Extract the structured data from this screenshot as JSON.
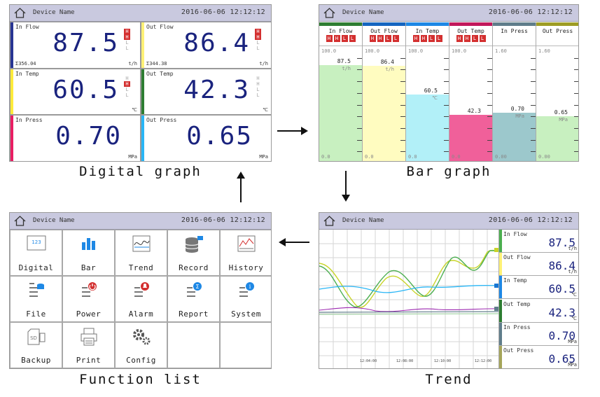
{
  "header": {
    "device_name": "Device Name",
    "datetime": "2016-06-06 12:12:12"
  },
  "captions": {
    "digital": "Digital graph",
    "bar": "Bar graph",
    "function": "Function list",
    "trend": "Trend"
  },
  "colors": {
    "in_flow": "#283593",
    "out_flow": "#fff176",
    "in_temp": "#ffeb3b",
    "out_temp": "#2e7d32",
    "in_press": "#e91e63",
    "out_press": "#29b6f6"
  },
  "digital": {
    "in_flow": {
      "name": "In Flow",
      "value": "87.5",
      "unit": "t/h",
      "acc": "Σ356.04",
      "alarms": [
        "H",
        "H",
        "L",
        "L"
      ]
    },
    "out_flow": {
      "name": "Out Flow",
      "value": "86.4",
      "unit": "t/h",
      "acc": "Σ344.38",
      "alarms": [
        "H",
        "H",
        "L",
        "L"
      ]
    },
    "in_temp": {
      "name": "In Temp",
      "value": "60.5",
      "unit": "℃",
      "alarms": [
        "H",
        "H",
        "L",
        "L"
      ]
    },
    "out_temp": {
      "name": "Out Temp",
      "value": "42.3",
      "unit": "℃",
      "alarms": [
        "H",
        "H",
        "L",
        "L"
      ]
    },
    "in_press": {
      "name": "In Press",
      "value": "0.70",
      "unit": "MPa"
    },
    "out_press": {
      "name": "Out Press",
      "value": "0.65",
      "unit": "MPa"
    }
  },
  "bar": {
    "columns": [
      {
        "name": "In Flow",
        "max": "100.0",
        "min": "0.0",
        "value": "87.5",
        "unit": "t/h",
        "level": 0.875,
        "alarm": true
      },
      {
        "name": "Out Flow",
        "max": "100.0",
        "min": "0.0",
        "value": "86.4",
        "unit": "t/h",
        "level": 0.864,
        "alarm": true
      },
      {
        "name": "In Temp",
        "max": "100.0",
        "min": "0.0",
        "value": "60.5",
        "unit": "℃",
        "level": 0.605,
        "alarm": true
      },
      {
        "name": "Out Temp",
        "max": "100.0",
        "min": "0.0",
        "value": "42.3",
        "unit": "",
        "level": 0.423,
        "alarm": true
      },
      {
        "name": "In Press",
        "max": "1.60",
        "min": "0.00",
        "value": "0.70",
        "unit": "MPa",
        "level": 0.4375,
        "alarm": false
      },
      {
        "name": "Out Press",
        "max": "1.60",
        "min": "0.00",
        "value": "0.65",
        "unit": "MPa",
        "level": 0.406,
        "alarm": false
      }
    ]
  },
  "functions": {
    "items": [
      {
        "label": "Digital",
        "icon": "digital-icon"
      },
      {
        "label": "Bar",
        "icon": "bar-chart-icon"
      },
      {
        "label": "Trend",
        "icon": "trend-icon"
      },
      {
        "label": "Record",
        "icon": "database-icon"
      },
      {
        "label": "History",
        "icon": "history-icon"
      },
      {
        "label": "File",
        "icon": "file-icon"
      },
      {
        "label": "Power",
        "icon": "power-icon"
      },
      {
        "label": "Alarm",
        "icon": "alarm-icon"
      },
      {
        "label": "Report",
        "icon": "report-icon"
      },
      {
        "label": "System",
        "icon": "system-icon"
      },
      {
        "label": "Backup",
        "icon": "sd-card-icon"
      },
      {
        "label": "Print",
        "icon": "printer-icon"
      },
      {
        "label": "Config",
        "icon": "gears-icon"
      }
    ],
    "digital_icon_text": "123"
  },
  "trend": {
    "time_labels": [
      "12:04:00",
      "12:08:00",
      "12:10:00",
      "12:12:00"
    ],
    "channels": [
      {
        "name": "In Flow",
        "value": "87.5",
        "unit": "t/h"
      },
      {
        "name": "Out Flow",
        "value": "86.4",
        "unit": "t/h"
      },
      {
        "name": "In Temp",
        "value": "60.5",
        "unit": "℃"
      },
      {
        "name": "Out Temp",
        "value": "42.3",
        "unit": "℃"
      },
      {
        "name": "In Press",
        "value": "0.70",
        "unit": "MPa"
      },
      {
        "name": "Out Press",
        "value": "0.65",
        "unit": "MPa"
      }
    ]
  }
}
